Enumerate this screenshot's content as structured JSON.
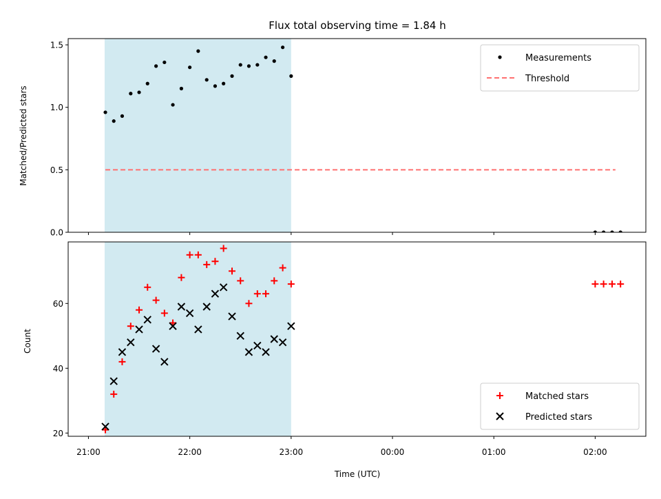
{
  "chart_data": {
    "title": "Flux total observing time = 1.84 h",
    "x": {
      "label": "Time (UTC)",
      "unit": "hours after 21:00 UTC",
      "range": [
        -0.2,
        5.5
      ],
      "ticks": [
        0,
        1,
        2,
        3,
        4,
        5
      ],
      "tick_labels": [
        "21:00",
        "22:00",
        "23:00",
        "00:00",
        "01:00",
        "02:00"
      ]
    },
    "shaded_interval": {
      "start": 0.16,
      "end": 2.0,
      "color": "#add8e6"
    },
    "panels": [
      {
        "id": "ratio",
        "type": "scatter",
        "ylabel": "Matched/Predicted stars",
        "ylim": [
          0.0,
          1.55
        ],
        "yticks": [
          0.0,
          0.5,
          1.0,
          1.5
        ],
        "ytick_labels": [
          "0.0",
          "0.5",
          "1.0",
          "1.5"
        ],
        "legend": {
          "position": "top-right",
          "entries": [
            "Measurements",
            "Threshold"
          ]
        },
        "series": [
          {
            "name": "Measurements",
            "marker": "dot",
            "color": "#000000",
            "x": [
              0.167,
              0.25,
              0.333,
              0.417,
              0.5,
              0.583,
              0.667,
              0.75,
              0.833,
              0.917,
              1.0,
              1.083,
              1.167,
              1.25,
              1.333,
              1.417,
              1.5,
              1.583,
              1.667,
              1.75,
              1.833,
              1.917,
              2.0,
              5.0,
              5.083,
              5.167,
              5.25
            ],
            "y": [
              0.96,
              0.89,
              0.93,
              1.11,
              1.12,
              1.19,
              1.33,
              1.36,
              1.02,
              1.15,
              1.32,
              1.45,
              1.22,
              1.17,
              1.19,
              1.25,
              1.34,
              1.33,
              1.34,
              1.4,
              1.37,
              1.48,
              1.25,
              0.0,
              0.0,
              0.0,
              0.0
            ]
          },
          {
            "name": "Threshold",
            "style": "dashed",
            "color": "#ff7070",
            "x": [
              0.167,
              5.2
            ],
            "y": [
              0.5,
              0.5
            ]
          }
        ]
      },
      {
        "id": "counts",
        "type": "scatter",
        "ylabel": "Count",
        "ylim": [
          19,
          79
        ],
        "yticks": [
          20,
          40,
          60
        ],
        "ytick_labels": [
          "20",
          "40",
          "60"
        ],
        "legend": {
          "position": "bottom-right",
          "entries": [
            "Matched stars",
            "Predicted stars"
          ]
        },
        "series": [
          {
            "name": "Matched stars",
            "marker": "plus",
            "color": "#ff0000",
            "x": [
              0.167,
              0.25,
              0.333,
              0.417,
              0.5,
              0.583,
              0.667,
              0.75,
              0.833,
              0.917,
              1.0,
              1.083,
              1.167,
              1.25,
              1.333,
              1.417,
              1.5,
              1.583,
              1.667,
              1.75,
              1.833,
              1.917,
              2.0,
              5.0,
              5.083,
              5.167,
              5.25
            ],
            "y": [
              21,
              32,
              42,
              53,
              58,
              65,
              61,
              57,
              54,
              68,
              75,
              75,
              72,
              73,
              77,
              70,
              67,
              60,
              63,
              63,
              67,
              71,
              66,
              66,
              66,
              66,
              66
            ]
          },
          {
            "name": "Predicted stars",
            "marker": "x",
            "color": "#000000",
            "x": [
              0.167,
              0.25,
              0.333,
              0.417,
              0.5,
              0.583,
              0.667,
              0.75,
              0.833,
              0.917,
              1.0,
              1.083,
              1.167,
              1.25,
              1.333,
              1.417,
              1.5,
              1.583,
              1.667,
              1.75,
              1.833,
              1.917,
              2.0
            ],
            "y": [
              22,
              36,
              45,
              48,
              52,
              55,
              46,
              42,
              53,
              59,
              57,
              52,
              59,
              63,
              65,
              56,
              50,
              45,
              47,
              45,
              49,
              48,
              53
            ]
          }
        ]
      }
    ]
  }
}
